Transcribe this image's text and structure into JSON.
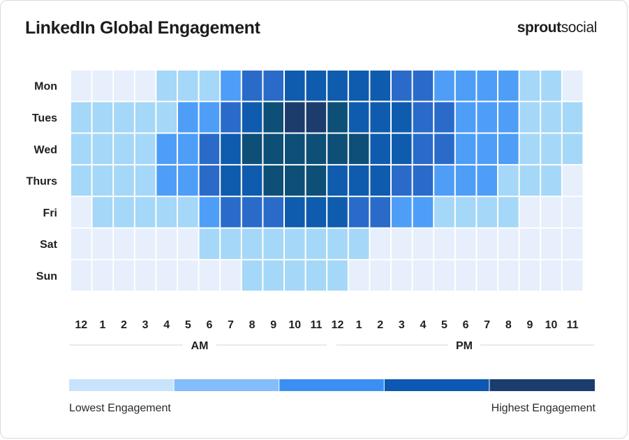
{
  "title": "LinkedIn Global Engagement",
  "brand": {
    "bold": "sprout",
    "regular": "social"
  },
  "chart_data": {
    "type": "heatmap",
    "title": "LinkedIn Global Engagement",
    "rows": [
      "Mon",
      "Tues",
      "Wed",
      "Thurs",
      "Fri",
      "Sat",
      "Sun"
    ],
    "columns": [
      "12",
      "1",
      "2",
      "3",
      "4",
      "5",
      "6",
      "7",
      "8",
      "9",
      "10",
      "11",
      "12",
      "1",
      "2",
      "3",
      "4",
      "5",
      "6",
      "7",
      "8",
      "9",
      "10",
      "11"
    ],
    "period_labels": [
      "AM",
      "PM"
    ],
    "scale": {
      "levels": 6,
      "colors": [
        "#e6effb",
        "#a5d7f8",
        "#4e9ef8",
        "#2a6bc9",
        "#0f5cae",
        "#0e4f78",
        "#1c3c6c"
      ],
      "low_label": "Lowest Engagement",
      "high_label": "Highest Engagement",
      "legend_colors": [
        "#c8e3fc",
        "#84bdf9",
        "#3b8ff2",
        "#0d58b3",
        "#1b3d6d"
      ]
    },
    "values": [
      [
        0,
        0,
        0,
        0,
        1,
        1,
        1,
        2,
        3,
        3,
        4,
        4,
        4,
        4,
        4,
        3,
        3,
        2,
        2,
        2,
        2,
        1,
        1,
        0
      ],
      [
        1,
        1,
        1,
        1,
        1,
        2,
        2,
        3,
        4,
        5,
        6,
        6,
        5,
        4,
        4,
        4,
        3,
        3,
        2,
        2,
        2,
        1,
        1,
        1
      ],
      [
        1,
        1,
        1,
        1,
        2,
        2,
        3,
        4,
        5,
        5,
        5,
        5,
        5,
        5,
        4,
        4,
        3,
        3,
        2,
        2,
        2,
        1,
        1,
        1
      ],
      [
        1,
        1,
        1,
        1,
        2,
        2,
        3,
        4,
        4,
        5,
        5,
        5,
        4,
        4,
        4,
        3,
        3,
        2,
        2,
        2,
        1,
        1,
        1,
        0
      ],
      [
        0,
        1,
        1,
        1,
        1,
        1,
        2,
        3,
        3,
        3,
        4,
        4,
        4,
        3,
        3,
        2,
        2,
        1,
        1,
        1,
        1,
        0,
        0,
        0
      ],
      [
        0,
        0,
        0,
        0,
        0,
        0,
        1,
        1,
        1,
        1,
        1,
        1,
        1,
        1,
        0,
        0,
        0,
        0,
        0,
        0,
        0,
        0,
        0,
        0
      ],
      [
        0,
        0,
        0,
        0,
        0,
        0,
        0,
        0,
        1,
        1,
        1,
        1,
        1,
        0,
        0,
        0,
        0,
        0,
        0,
        0,
        0,
        0,
        0,
        0
      ]
    ]
  }
}
